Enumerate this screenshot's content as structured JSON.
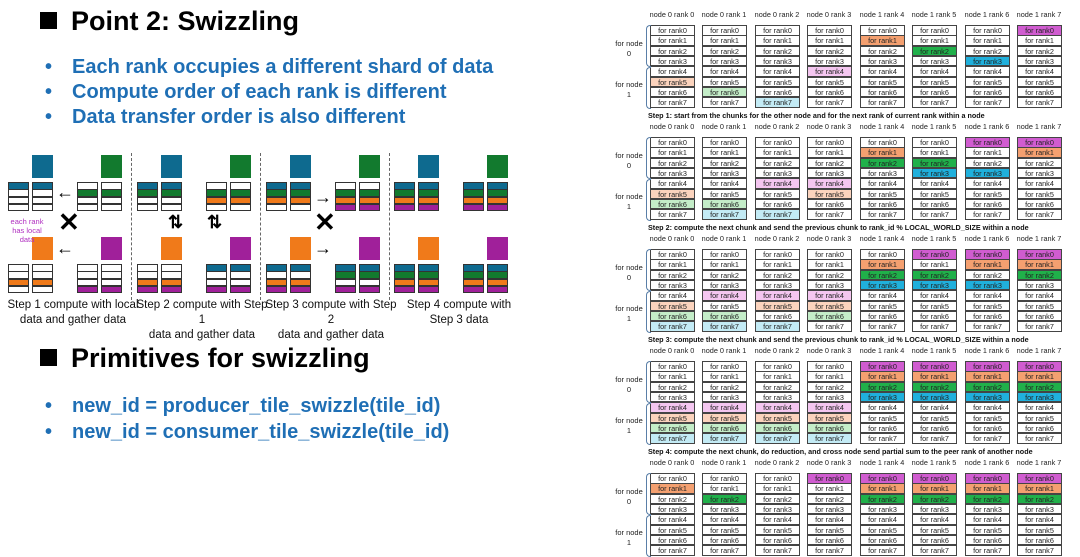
{
  "left": {
    "title1": "Point 2: Swizzling",
    "bullets1": [
      "Each rank occupies a different shard of data",
      "Compute order of each rank is different",
      "Data transfer order is also different"
    ],
    "title2": "Primitives for swizzling",
    "bullets2": [
      "new_id = producer_tile_swizzle(tile_id)",
      "new_id = consumer_tile_swizzle(tile_id)"
    ],
    "bullet_color": "#1f6fb5",
    "diagram": {
      "note": "each rank has local data",
      "colors": {
        "b": "#0e6a8f",
        "g": "#127a2e",
        "o": "#f07a1a",
        "p": "#a0209a",
        "w": "#ffffff"
      },
      "rank_colors": [
        "b",
        "g",
        "o",
        "p"
      ],
      "panels": [
        {
          "caption": [
            "Step 1 compute with local",
            "data and gather data"
          ],
          "stripes": [
            [
              "b",
              "w",
              "w",
              "w"
            ],
            [
              "w",
              "g",
              "w",
              "w"
            ],
            [
              "w",
              "w",
              "o",
              "w"
            ],
            [
              "w",
              "w",
              "w",
              "p"
            ]
          ]
        },
        {
          "caption": [
            "Step 2 compute with Step 1",
            "data and gather data"
          ],
          "stripes": [
            [
              "b",
              "g",
              "w",
              "w"
            ],
            [
              "w",
              "g",
              "o",
              "w"
            ],
            [
              "w",
              "w",
              "o",
              "p"
            ],
            [
              "b",
              "w",
              "w",
              "p"
            ]
          ]
        },
        {
          "caption": [
            "Step 3 compute with Step 2",
            "data and gather data"
          ],
          "stripes": [
            [
              "b",
              "g",
              "o",
              "w"
            ],
            [
              "w",
              "g",
              "o",
              "p"
            ],
            [
              "b",
              "w",
              "o",
              "p"
            ],
            [
              "b",
              "g",
              "w",
              "p"
            ]
          ]
        },
        {
          "caption": [
            "Step 4 compute with",
            "Step 3 data"
          ],
          "stripes": [
            [
              "b",
              "g",
              "o",
              "p"
            ],
            [
              "b",
              "g",
              "o",
              "p"
            ],
            [
              "b",
              "g",
              "o",
              "p"
            ],
            [
              "b",
              "g",
              "o",
              "p"
            ]
          ]
        }
      ]
    }
  },
  "right": {
    "columns": [
      "node 0 rank 0",
      "node 0 rank 1",
      "node 0 rank 2",
      "node 0 rank 3",
      "node 1 rank 4",
      "node 1 rank 5",
      "node 1 rank 6",
      "node 1 rank 7"
    ],
    "rows": [
      "for rank0",
      "for rank1",
      "for rank2",
      "for rank3",
      "for rank4",
      "for rank5",
      "for rank6",
      "for rank7"
    ],
    "node_labels": [
      "for node 0",
      "for node 1"
    ],
    "row_colors": [
      "#d05cd0",
      "#f4a070",
      "#20b04a",
      "#20b0dc",
      "#f4c6f0",
      "#fbd3bd",
      "#c4edc8",
      "#c3ebf5"
    ],
    "steps": [
      {
        "caption": "Step 1: start from the chunks for the other node and for the next rank of current rank within a node",
        "highlight": [
          [
            5
          ],
          [
            6
          ],
          [
            7
          ],
          [
            4
          ],
          [
            1
          ],
          [
            2
          ],
          [
            3
          ],
          [
            0
          ]
        ]
      },
      {
        "caption": "Step 2: compute the next chunk and send the previous chunk to rank_id % LOCAL_WORLD_SIZE within a node",
        "highlight": [
          [
            5,
            6
          ],
          [
            6,
            7
          ],
          [
            4,
            7
          ],
          [
            4,
            5
          ],
          [
            1,
            2
          ],
          [
            2,
            3
          ],
          [
            0,
            3
          ],
          [
            0,
            1
          ]
        ]
      },
      {
        "caption": "Step 3: compute the next chunk and send the previous chunk to rank_id % LOCAL_WORLD_SIZE within a node",
        "highlight": [
          [
            5,
            6,
            7
          ],
          [
            4,
            6,
            7
          ],
          [
            4,
            5,
            7
          ],
          [
            4,
            5,
            6
          ],
          [
            1,
            2,
            3
          ],
          [
            0,
            2,
            3
          ],
          [
            0,
            1,
            3
          ],
          [
            0,
            1,
            2
          ]
        ]
      },
      {
        "caption": "Step 4: compute the next chunk, do reduction, and cross node send partial sum to the peer rank of another node",
        "highlight": [
          [
            4,
            5,
            6,
            7
          ],
          [
            4,
            5,
            6,
            7
          ],
          [
            4,
            5,
            6,
            7
          ],
          [
            4,
            5,
            6,
            7
          ],
          [
            0,
            1,
            2,
            3
          ],
          [
            0,
            1,
            2,
            3
          ],
          [
            0,
            1,
            2,
            3
          ],
          [
            0,
            1,
            2,
            3
          ]
        ]
      },
      {
        "caption": "",
        "highlight": [
          [
            1
          ],
          [
            2
          ],
          [],
          [
            0
          ],
          [
            0,
            1,
            2
          ],
          [
            0,
            1,
            2
          ],
          [
            0,
            1,
            2
          ],
          [
            0,
            1,
            2
          ]
        ]
      }
    ]
  }
}
